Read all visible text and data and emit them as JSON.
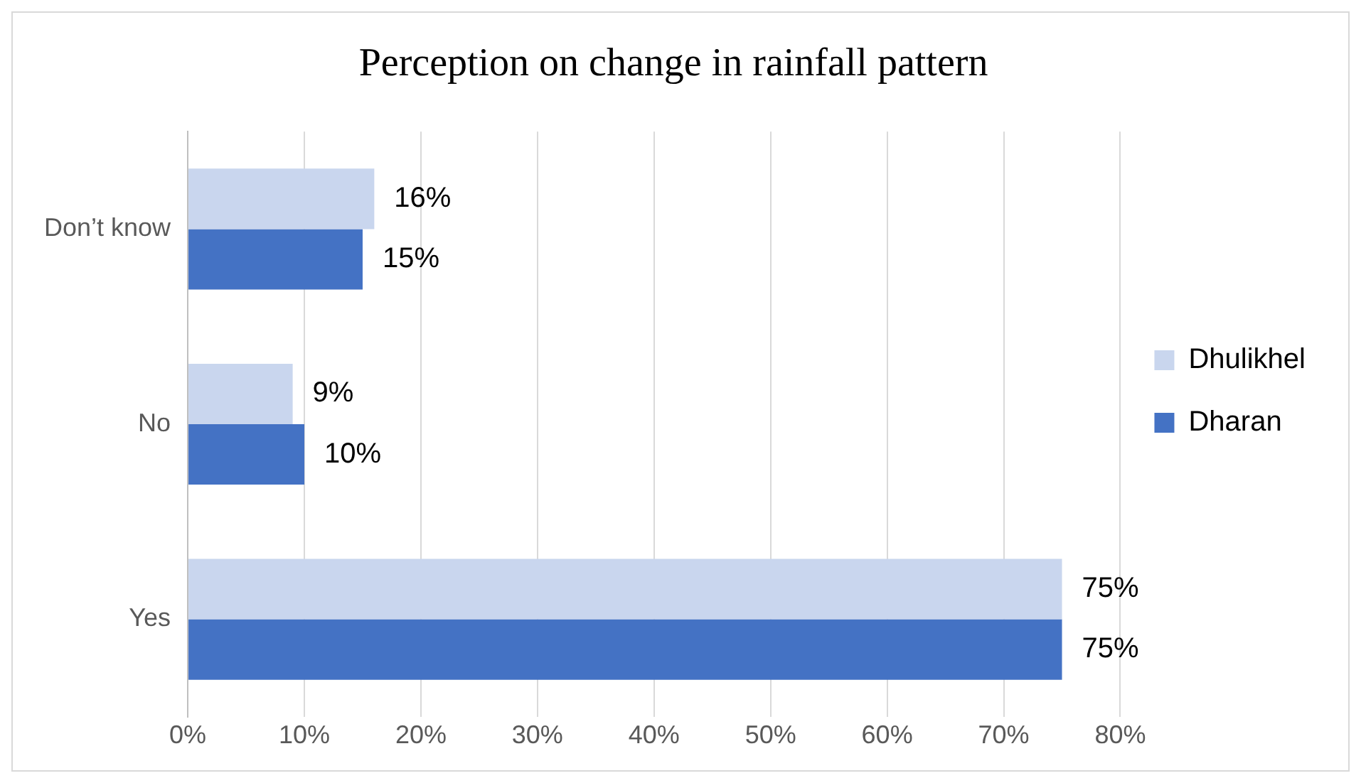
{
  "chart_data": {
    "type": "bar",
    "title": "Perception on change in rainfall pattern",
    "orientation": "horizontal",
    "categories": [
      "Don’t know",
      "No",
      "Yes"
    ],
    "series": [
      {
        "name": "Dhulikhel",
        "color": "#c9d6ee",
        "values": [
          16,
          9,
          75
        ],
        "value_labels": [
          "16%",
          "9%",
          "75%"
        ]
      },
      {
        "name": "Dharan",
        "color": "#4472c4",
        "values": [
          15,
          10,
          75
        ],
        "value_labels": [
          "15%",
          "10%",
          "75%"
        ]
      }
    ],
    "xlim": [
      0,
      80
    ],
    "xticks": [
      {
        "value": 0,
        "label": "0%"
      },
      {
        "value": 10,
        "label": "10%"
      },
      {
        "value": 20,
        "label": "20%"
      },
      {
        "value": 30,
        "label": "30%"
      },
      {
        "value": 40,
        "label": "40%"
      },
      {
        "value": 50,
        "label": "50%"
      },
      {
        "value": 60,
        "label": "60%"
      },
      {
        "value": 70,
        "label": "70%"
      },
      {
        "value": 80,
        "label": "80%"
      }
    ],
    "grid": "x",
    "legend": "right"
  }
}
